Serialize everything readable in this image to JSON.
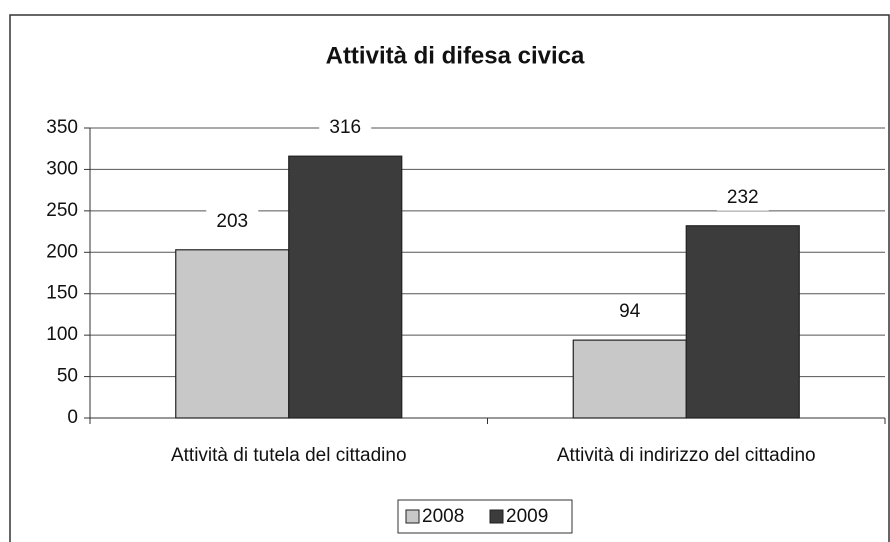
{
  "chart_data": {
    "type": "bar",
    "title": "Attività di difesa civica",
    "categories": [
      "Attività di tutela del cittadino",
      "Attività di indirizzo del cittadino"
    ],
    "series": [
      {
        "name": "2008",
        "color": "#c8c8c8",
        "values": [
          203,
          94
        ]
      },
      {
        "name": "2009",
        "color": "#3c3c3c",
        "values": [
          316,
          232
        ]
      }
    ],
    "ylim": [
      0,
      350
    ],
    "yticks": [
      0,
      50,
      100,
      150,
      200,
      250,
      300,
      350
    ],
    "grid": true,
    "legend": "bottom"
  }
}
